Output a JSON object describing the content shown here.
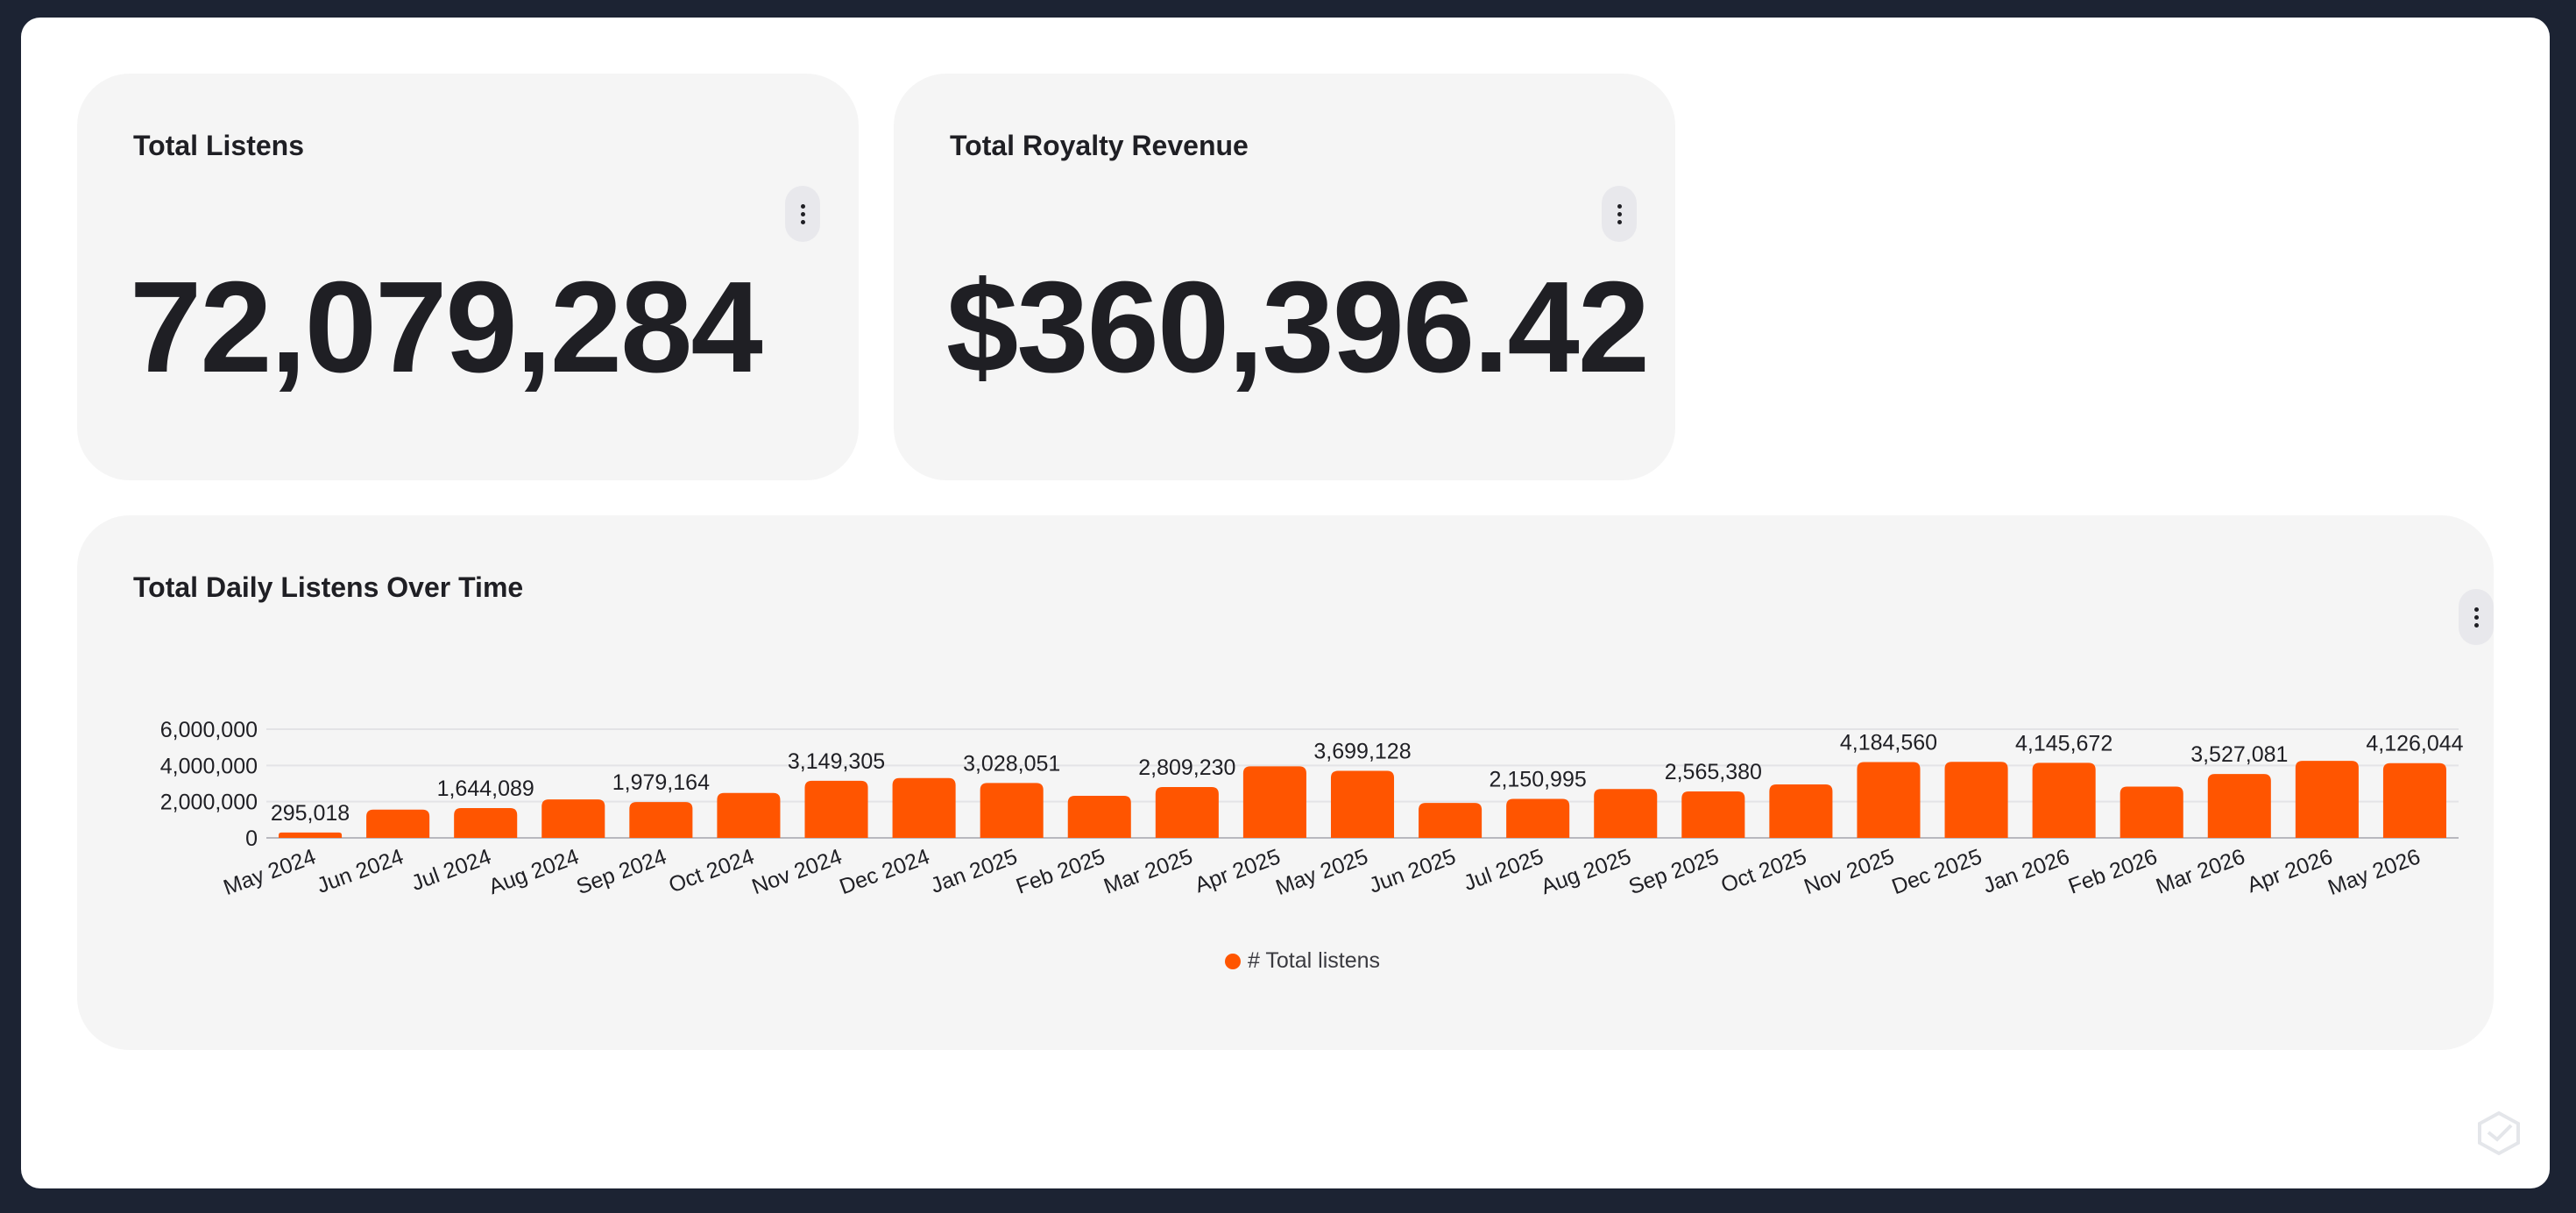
{
  "colors": {
    "background": "#1c2333",
    "card": "#f5f5f5",
    "text": "#1f1f24",
    "accent": "#ff5500"
  },
  "kpi_listens": {
    "title": "Total Listens",
    "value": "72,079,284",
    "menu_icon": "kebab-menu-icon"
  },
  "kpi_revenue": {
    "title": "Total Royalty Revenue",
    "value": "$360,396.42",
    "menu_icon": "kebab-menu-icon"
  },
  "daily_chart": {
    "title": "Total Daily Listens Over Time",
    "menu_icon": "kebab-menu-icon",
    "legend_label": "# Total listens"
  },
  "chart_data": {
    "type": "bar",
    "title": "Total Daily Listens Over Time",
    "xlabel": "",
    "ylabel": "",
    "ylim": [
      0,
      6000000
    ],
    "yticks": [
      0,
      2000000,
      4000000,
      6000000
    ],
    "ytick_labels": [
      "0",
      "2,000,000",
      "4,000,000",
      "6,000,000"
    ],
    "grid": true,
    "legend_position": "bottom",
    "categories": [
      "May 2024",
      "Jun 2024",
      "Jul 2024",
      "Aug 2024",
      "Sep 2024",
      "Oct 2024",
      "Nov 2024",
      "Dec 2024",
      "Jan 2025",
      "Feb 2025",
      "Mar 2025",
      "Apr 2025",
      "May 2025",
      "Jun 2025",
      "Jul 2025",
      "Aug 2025",
      "Sep 2025",
      "Oct 2025",
      "Nov 2025",
      "Dec 2025",
      "Jan 2026",
      "Feb 2026",
      "Mar 2026",
      "Apr 2026",
      "May 2026"
    ],
    "series": [
      {
        "name": "# Total listens",
        "color": "#ff5500",
        "values": [
          295018,
          1560000,
          1644089,
          2120000,
          1979164,
          2480000,
          3149305,
          3300000,
          3028051,
          2320000,
          2809230,
          3950000,
          3699128,
          1930000,
          2150995,
          2700000,
          2565380,
          2950000,
          4184560,
          4200000,
          4145672,
          2830000,
          3527081,
          4250000,
          4126044
        ]
      }
    ],
    "data_labels": [
      {
        "index": 0,
        "text": "295,018"
      },
      {
        "index": 2,
        "text": "1,644,089"
      },
      {
        "index": 4,
        "text": "1,979,164"
      },
      {
        "index": 6,
        "text": "3,149,305"
      },
      {
        "index": 8,
        "text": "3,028,051"
      },
      {
        "index": 10,
        "text": "2,809,230"
      },
      {
        "index": 12,
        "text": "3,699,128"
      },
      {
        "index": 14,
        "text": "2,150,995"
      },
      {
        "index": 16,
        "text": "2,565,380"
      },
      {
        "index": 18,
        "text": "4,184,560"
      },
      {
        "index": 20,
        "text": "4,145,672"
      },
      {
        "index": 22,
        "text": "3,527,081"
      },
      {
        "index": 24,
        "text": "4,126,044"
      }
    ]
  }
}
